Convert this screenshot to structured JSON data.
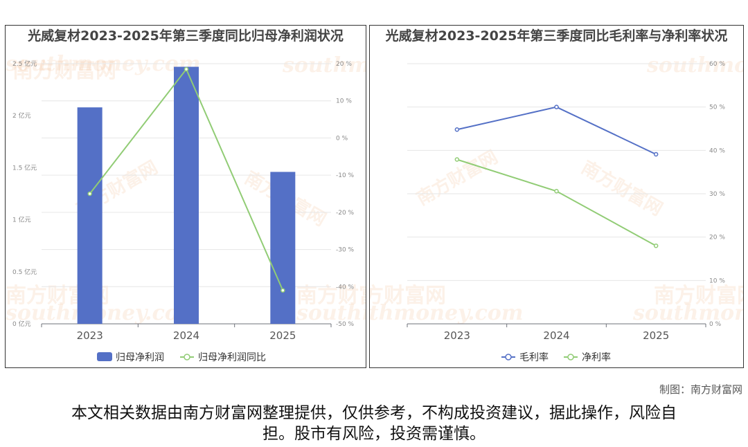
{
  "charts": {
    "left": {
      "title": "光威复材2023-2025年第三季度同比归母净利润状况",
      "legend": [
        "归母净利润",
        "归母净利润同比"
      ]
    },
    "right": {
      "title": "光威复材2023-2025年第三季度同比毛利率与净利率状况",
      "legend": [
        "毛利率",
        "净利率"
      ]
    }
  },
  "watermark": {
    "cn": "南方财富网",
    "en": "southmoney.com"
  },
  "footer": {
    "credit": "制图：南方财富网",
    "disclaimer": "本文相关数据由南方财富网整理提供，仅供参考，不构成投资建议，据此操作，风险自担。股市有风险，投资需谨慎。"
  },
  "colors": {
    "bar": "#5470c6",
    "green": "#91cc75",
    "blue": "#5470c6"
  },
  "chart_data": [
    {
      "type": "bar",
      "title": "光威复材2023-2025年第三季度同比归母净利润状况",
      "categories": [
        "2023",
        "2024",
        "2025"
      ],
      "series": [
        {
          "name": "归母净利润",
          "type": "bar",
          "axis": "left",
          "values": [
            2.08,
            2.47,
            1.46
          ]
        },
        {
          "name": "归母净利润同比",
          "type": "line",
          "axis": "right",
          "values": [
            -15,
            18.5,
            -41
          ]
        }
      ],
      "y_left": {
        "ticks": [
          "0 亿元",
          "0.5 亿元",
          "1 亿元",
          "1.5 亿元",
          "2 亿元",
          "2.5 亿元"
        ],
        "range": [
          0,
          2.5
        ]
      },
      "y_right": {
        "ticks": [
          "-50 %",
          "-40 %",
          "-30 %",
          "-20 %",
          "-10 %",
          "0 %",
          "10 %",
          "20 %"
        ],
        "range": [
          -50,
          20
        ]
      },
      "legend_position": "bottom"
    },
    {
      "type": "line",
      "title": "光威复材2023-2025年第三季度同比毛利率与净利率状况",
      "categories": [
        "2023",
        "2024",
        "2025"
      ],
      "series": [
        {
          "name": "毛利率",
          "values": [
            44.8,
            50.0,
            39.1
          ]
        },
        {
          "name": "净利率",
          "values": [
            37.9,
            30.6,
            18.0
          ]
        }
      ],
      "y_right": {
        "ticks": [
          "0 %",
          "10 %",
          "20 %",
          "30 %",
          "40 %",
          "50 %",
          "60 %"
        ],
        "range": [
          0,
          60
        ]
      },
      "legend_position": "bottom"
    }
  ]
}
